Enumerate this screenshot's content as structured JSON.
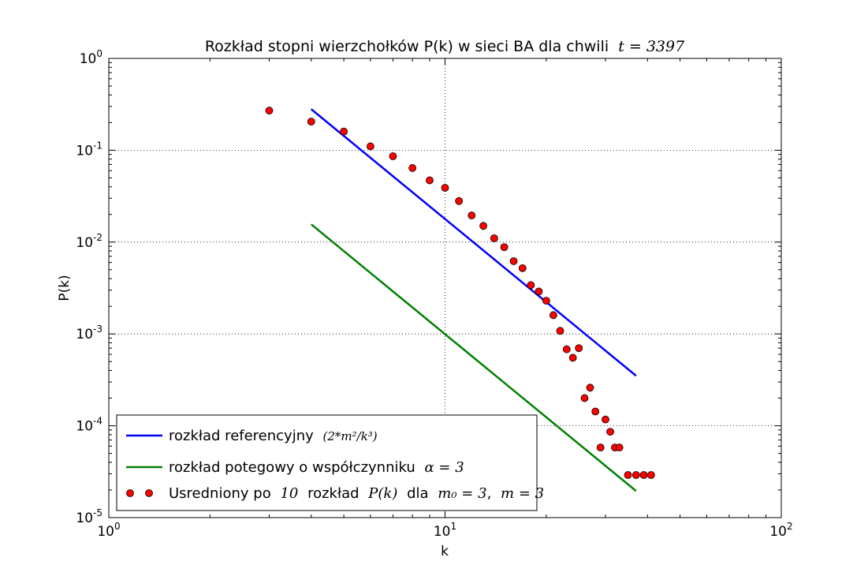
{
  "chart_data": {
    "type": "scatter",
    "title": "Rozkład stopni wierzchołków P(k) w sieci BA dla chwili",
    "title_math": "t = 3397",
    "xlabel": "k",
    "ylabel": "P(k)",
    "xscale": "log",
    "yscale": "log",
    "xlim": [
      1,
      100
    ],
    "ylim": [
      1e-05,
      1
    ],
    "grid": true,
    "legend_position": "lower-left",
    "x_ticks": [
      {
        "value": 1,
        "base": "10",
        "exp": "0"
      },
      {
        "value": 10,
        "base": "10",
        "exp": "1"
      },
      {
        "value": 100,
        "base": "10",
        "exp": "2"
      }
    ],
    "y_ticks": [
      {
        "value": 1,
        "base": "10",
        "exp": "0"
      },
      {
        "value": 0.1,
        "base": "10",
        "exp": "-1"
      },
      {
        "value": 0.01,
        "base": "10",
        "exp": "-2"
      },
      {
        "value": 0.001,
        "base": "10",
        "exp": "-3"
      },
      {
        "value": 0.0001,
        "base": "10",
        "exp": "-4"
      },
      {
        "value": 1e-05,
        "base": "10",
        "exp": "-5"
      }
    ],
    "series": [
      {
        "name": "rozkład referencyjny",
        "kind": "line",
        "color": "#0000ff",
        "x": [
          4,
          37
        ],
        "y": [
          0.28,
          0.00035
        ]
      },
      {
        "name": "rozkład potegowy o współczynniku",
        "kind": "line",
        "color": "#008000",
        "x": [
          4,
          37
        ],
        "y": [
          0.0156,
          1.95e-05
        ]
      },
      {
        "name": "Usredniony po",
        "kind": "points",
        "color": "#ff0000",
        "x": [
          3,
          4,
          5,
          6,
          7,
          8,
          9,
          10,
          11,
          12,
          13,
          14,
          15,
          16,
          17,
          18,
          19,
          20,
          21,
          22,
          23,
          24,
          25,
          26,
          27,
          28,
          29,
          30,
          31,
          32,
          33,
          35,
          37,
          39,
          41
        ],
        "y": [
          0.27,
          0.205,
          0.16,
          0.11,
          0.086,
          0.064,
          0.047,
          0.039,
          0.028,
          0.0195,
          0.015,
          0.011,
          0.0088,
          0.0062,
          0.0052,
          0.0034,
          0.0029,
          0.0023,
          0.0016,
          0.00108,
          0.00068,
          0.00055,
          0.0007,
          0.0002,
          0.00026,
          0.000143,
          5.8e-05,
          0.000117,
          8.6e-05,
          5.8e-05,
          5.8e-05,
          2.91e-05,
          2.91e-05,
          2.91e-05,
          2.91e-05
        ]
      }
    ],
    "legend": [
      {
        "text": "rozkład referencyjny",
        "math": "(2*m²/k³)"
      },
      {
        "text": "rozkład potegowy o współczynniku",
        "math": "α = 3"
      },
      {
        "text": "Usredniony po",
        "math1": "10",
        "text2": "rozkład",
        "math2": "P(k)",
        "text3": "dla",
        "math3": "m₀ = 3",
        "text4": ",",
        "math4": "m = 3"
      }
    ]
  }
}
